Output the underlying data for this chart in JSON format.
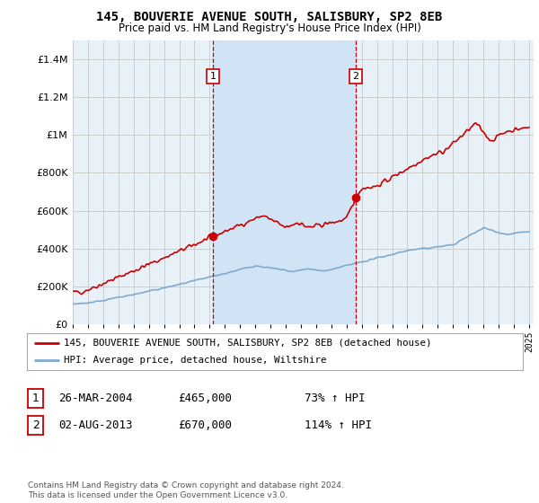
{
  "title": "145, BOUVERIE AVENUE SOUTH, SALISBURY, SP2 8EB",
  "subtitle": "Price paid vs. HM Land Registry's House Price Index (HPI)",
  "red_line_label": "145, BOUVERIE AVENUE SOUTH, SALISBURY, SP2 8EB (detached house)",
  "blue_line_label": "HPI: Average price, detached house, Wiltshire",
  "annotation1_date": "26-MAR-2004",
  "annotation1_price": "£465,000",
  "annotation1_hpi": "73% ↑ HPI",
  "annotation2_date": "02-AUG-2013",
  "annotation2_price": "£670,000",
  "annotation2_hpi": "114% ↑ HPI",
  "footer": "Contains HM Land Registry data © Crown copyright and database right 2024.\nThis data is licensed under the Open Government Licence v3.0.",
  "ylim": [
    0,
    1500000
  ],
  "yticks": [
    0,
    200000,
    400000,
    600000,
    800000,
    1000000,
    1200000,
    1400000
  ],
  "background_color": "#ffffff",
  "plot_bg_color": "#e8f0f8",
  "shaded_region_color": "#d0e4f5",
  "grid_color": "#cccccc",
  "red_color": "#cc0000",
  "blue_color": "#7faacc",
  "vline_color": "#cc0000",
  "annotation_box_edge_color": "#cc0000",
  "sale1_x": 2004.23,
  "sale1_y": 465000,
  "sale2_x": 2013.59,
  "sale2_y": 670000,
  "xlim_left": 1995,
  "xlim_right": 2025.3
}
